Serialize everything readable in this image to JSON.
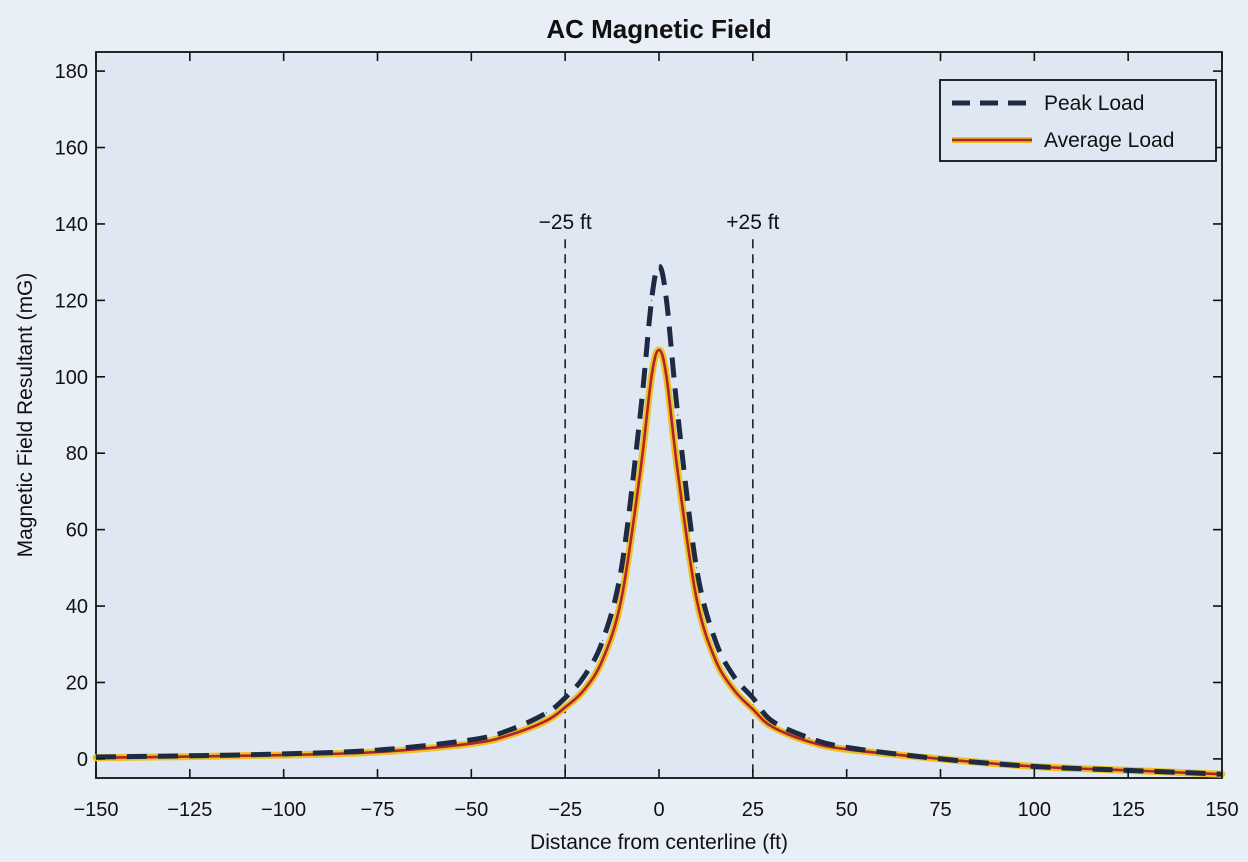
{
  "chart_data": {
    "type": "line",
    "title": "AC Magnetic Field",
    "xlabel": "Distance from centerline (ft)",
    "ylabel": "Magnetic Field Resultant (mG)",
    "xlim": [
      -150,
      150
    ],
    "ylim": [
      -5,
      185
    ],
    "xticks": [
      -150,
      -125,
      -100,
      -75,
      -50,
      -25,
      0,
      25,
      50,
      75,
      100,
      125,
      150
    ],
    "yticks": [
      0,
      20,
      40,
      60,
      80,
      100,
      120,
      140,
      160,
      180
    ],
    "grid": false,
    "legend_position": "top-right",
    "series": [
      {
        "name": "Peak Load",
        "style": "dashed",
        "color": "#1e2a44",
        "x": [
          -150,
          -125,
          -100,
          -75,
          -50,
          -40,
          -30,
          -25,
          -20,
          -15,
          -10,
          -5,
          -2,
          0,
          2,
          5,
          10,
          15,
          20,
          25,
          30,
          40,
          50,
          75,
          100,
          125,
          150
        ],
        "y": [
          0.5,
          0.8,
          1.3,
          2.3,
          5,
          7.5,
          12,
          16,
          21.5,
          31,
          50,
          90,
          120,
          129,
          120,
          90,
          50,
          31,
          21.5,
          16,
          10,
          5.5,
          3,
          0,
          -2,
          -3,
          -4
        ]
      },
      {
        "name": "Average Load",
        "style": "solid",
        "color": "#b5202a",
        "x": [
          -150,
          -125,
          -100,
          -75,
          -50,
          -40,
          -30,
          -25,
          -20,
          -15,
          -10,
          -5,
          -2,
          0,
          2,
          5,
          10,
          15,
          20,
          25,
          30,
          40,
          50,
          75,
          100,
          125,
          150
        ],
        "y": [
          0.3,
          0.6,
          1,
          1.8,
          4,
          6.2,
          10,
          13.5,
          18,
          26,
          42,
          75,
          100,
          107,
          100,
          75,
          42,
          26,
          18,
          13,
          8.5,
          4.5,
          2.5,
          0,
          -2,
          -3,
          -4
        ]
      }
    ],
    "annotations": [
      {
        "x": -25,
        "label": "−25 ft"
      },
      {
        "x": 25,
        "label": "+25 ft"
      }
    ]
  },
  "colors": {
    "background": "#e9eff6",
    "plot_area": "#dfe8f2",
    "axis": "#111111",
    "peak": "#1e2a44",
    "average_outer": "#e8c323",
    "average_inner": "#b5202a"
  }
}
